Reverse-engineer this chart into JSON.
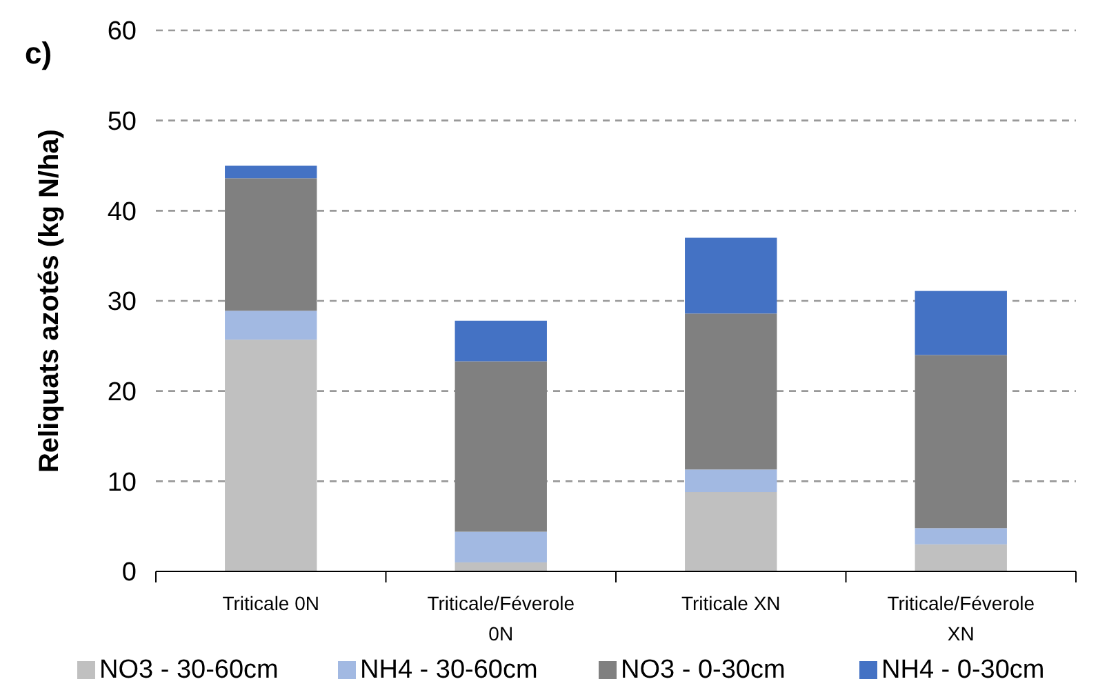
{
  "chart_data": {
    "type": "bar",
    "title": "c)",
    "ylabel": "Reliquats azotés (kg N/ha)",
    "categories": [
      "Triticale 0N",
      "Triticale/Féverole 0N",
      "Triticale XN",
      "Triticale/Féverole XN"
    ],
    "stacked": true,
    "series": [
      {
        "name": "NO3 - 30-60cm",
        "color": "#c0c0c0",
        "values": [
          25.7,
          1.0,
          8.8,
          3.0
        ]
      },
      {
        "name": "NH4 - 30-60cm",
        "color": "#a2b9e2",
        "values": [
          3.2,
          3.4,
          2.5,
          1.8
        ]
      },
      {
        "name": "NO3 - 0-30cm",
        "color": "#808080",
        "values": [
          14.7,
          18.9,
          17.3,
          19.2
        ]
      },
      {
        "name": "NH4 - 0-30cm",
        "color": "#4472c4",
        "values": [
          1.4,
          4.5,
          8.4,
          7.1
        ]
      }
    ],
    "ylim": [
      0,
      60
    ],
    "yticks": [
      0,
      10,
      20,
      30,
      40,
      50,
      60
    ],
    "grid": "y",
    "legend": "bottom"
  }
}
